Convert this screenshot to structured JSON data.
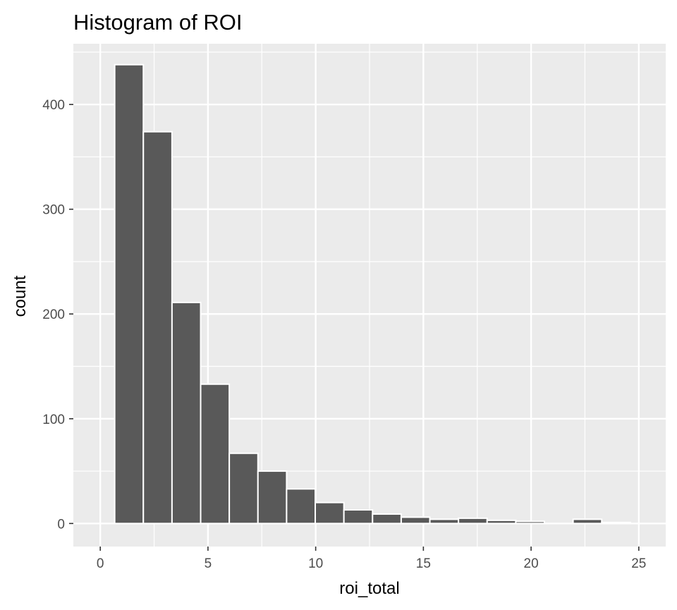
{
  "chart_data": {
    "type": "bar",
    "title": "Histogram of ROI",
    "xlabel": "roi_total",
    "ylabel": "count",
    "xlim": [
      -1.25,
      26.25
    ],
    "ylim": [
      -22,
      458
    ],
    "x_ticks": [
      0,
      5,
      10,
      15,
      20,
      25
    ],
    "y_ticks": [
      0,
      100,
      200,
      300,
      400
    ],
    "x_tick_labels": [
      "0",
      "5",
      "10",
      "15",
      "20",
      "25"
    ],
    "y_tick_labels": [
      "0",
      "100",
      "200",
      "300",
      "400"
    ],
    "bin_width": 1.33,
    "bins": [
      {
        "start": 0.67,
        "end": 2.0,
        "count": 438
      },
      {
        "start": 2.0,
        "end": 3.33,
        "count": 374
      },
      {
        "start": 3.33,
        "end": 4.66,
        "count": 211
      },
      {
        "start": 4.66,
        "end": 5.99,
        "count": 133
      },
      {
        "start": 5.99,
        "end": 7.32,
        "count": 67
      },
      {
        "start": 7.32,
        "end": 8.65,
        "count": 50
      },
      {
        "start": 8.65,
        "end": 9.98,
        "count": 33
      },
      {
        "start": 9.98,
        "end": 11.31,
        "count": 20
      },
      {
        "start": 11.31,
        "end": 12.64,
        "count": 13
      },
      {
        "start": 12.64,
        "end": 13.97,
        "count": 9
      },
      {
        "start": 13.97,
        "end": 15.3,
        "count": 6
      },
      {
        "start": 15.3,
        "end": 16.63,
        "count": 4
      },
      {
        "start": 16.63,
        "end": 17.96,
        "count": 5
      },
      {
        "start": 17.96,
        "end": 19.29,
        "count": 3
      },
      {
        "start": 19.29,
        "end": 20.62,
        "count": 2
      },
      {
        "start": 20.62,
        "end": 21.95,
        "count": 0
      },
      {
        "start": 21.95,
        "end": 23.28,
        "count": 4
      },
      {
        "start": 23.28,
        "end": 24.61,
        "count": 1
      }
    ],
    "grid": true,
    "legend": "none"
  },
  "colors": {
    "panel": "#ebebeb",
    "grid": "#ffffff",
    "bar_fill": "#595959",
    "bar_stroke": "#ffffff"
  }
}
